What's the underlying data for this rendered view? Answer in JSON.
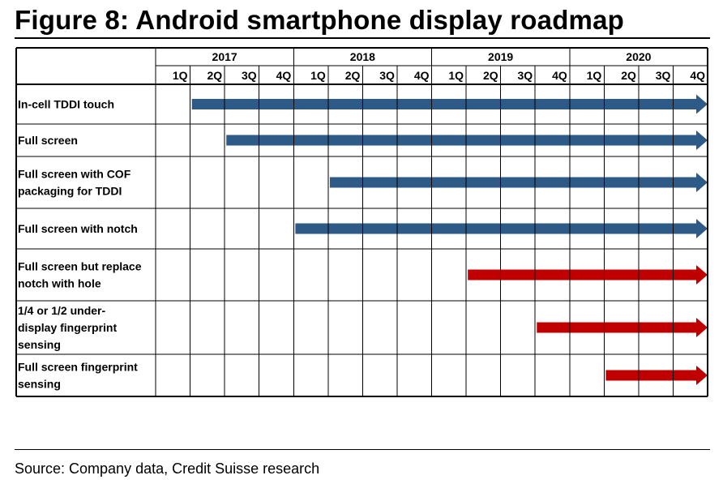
{
  "title": "Figure 8: Android smartphone display roadmap",
  "source": "Source: Company data, Credit Suisse research",
  "colors": {
    "blue": "#2e5a88",
    "red": "#c00000"
  },
  "chart_data": {
    "type": "table",
    "years": [
      "2017",
      "2018",
      "2019",
      "2020"
    ],
    "quarters": [
      "1Q",
      "2Q",
      "3Q",
      "4Q"
    ],
    "rows": [
      {
        "label": [
          "In-cell TDDI touch"
        ],
        "start": "2017 2Q",
        "color": "blue"
      },
      {
        "label": [
          "Full screen"
        ],
        "start": "2017 3Q",
        "color": "blue"
      },
      {
        "label": [
          "Full screen with COF",
          "packaging for TDDI"
        ],
        "start": "2018 2Q",
        "color": "blue"
      },
      {
        "label": [
          "Full screen with notch"
        ],
        "start": "2018 1Q",
        "color": "blue"
      },
      {
        "label": [
          "Full screen but replace",
          "notch with hole"
        ],
        "start": "2019 2Q",
        "color": "red"
      },
      {
        "label": [
          "1/4 or 1/2 under-",
          "display fingerprint",
          "sensing"
        ],
        "start": "2019 4Q",
        "color": "red"
      },
      {
        "label": [
          "Full screen fingerprint",
          "sensing"
        ],
        "start": "2020 2Q",
        "color": "red"
      }
    ]
  }
}
